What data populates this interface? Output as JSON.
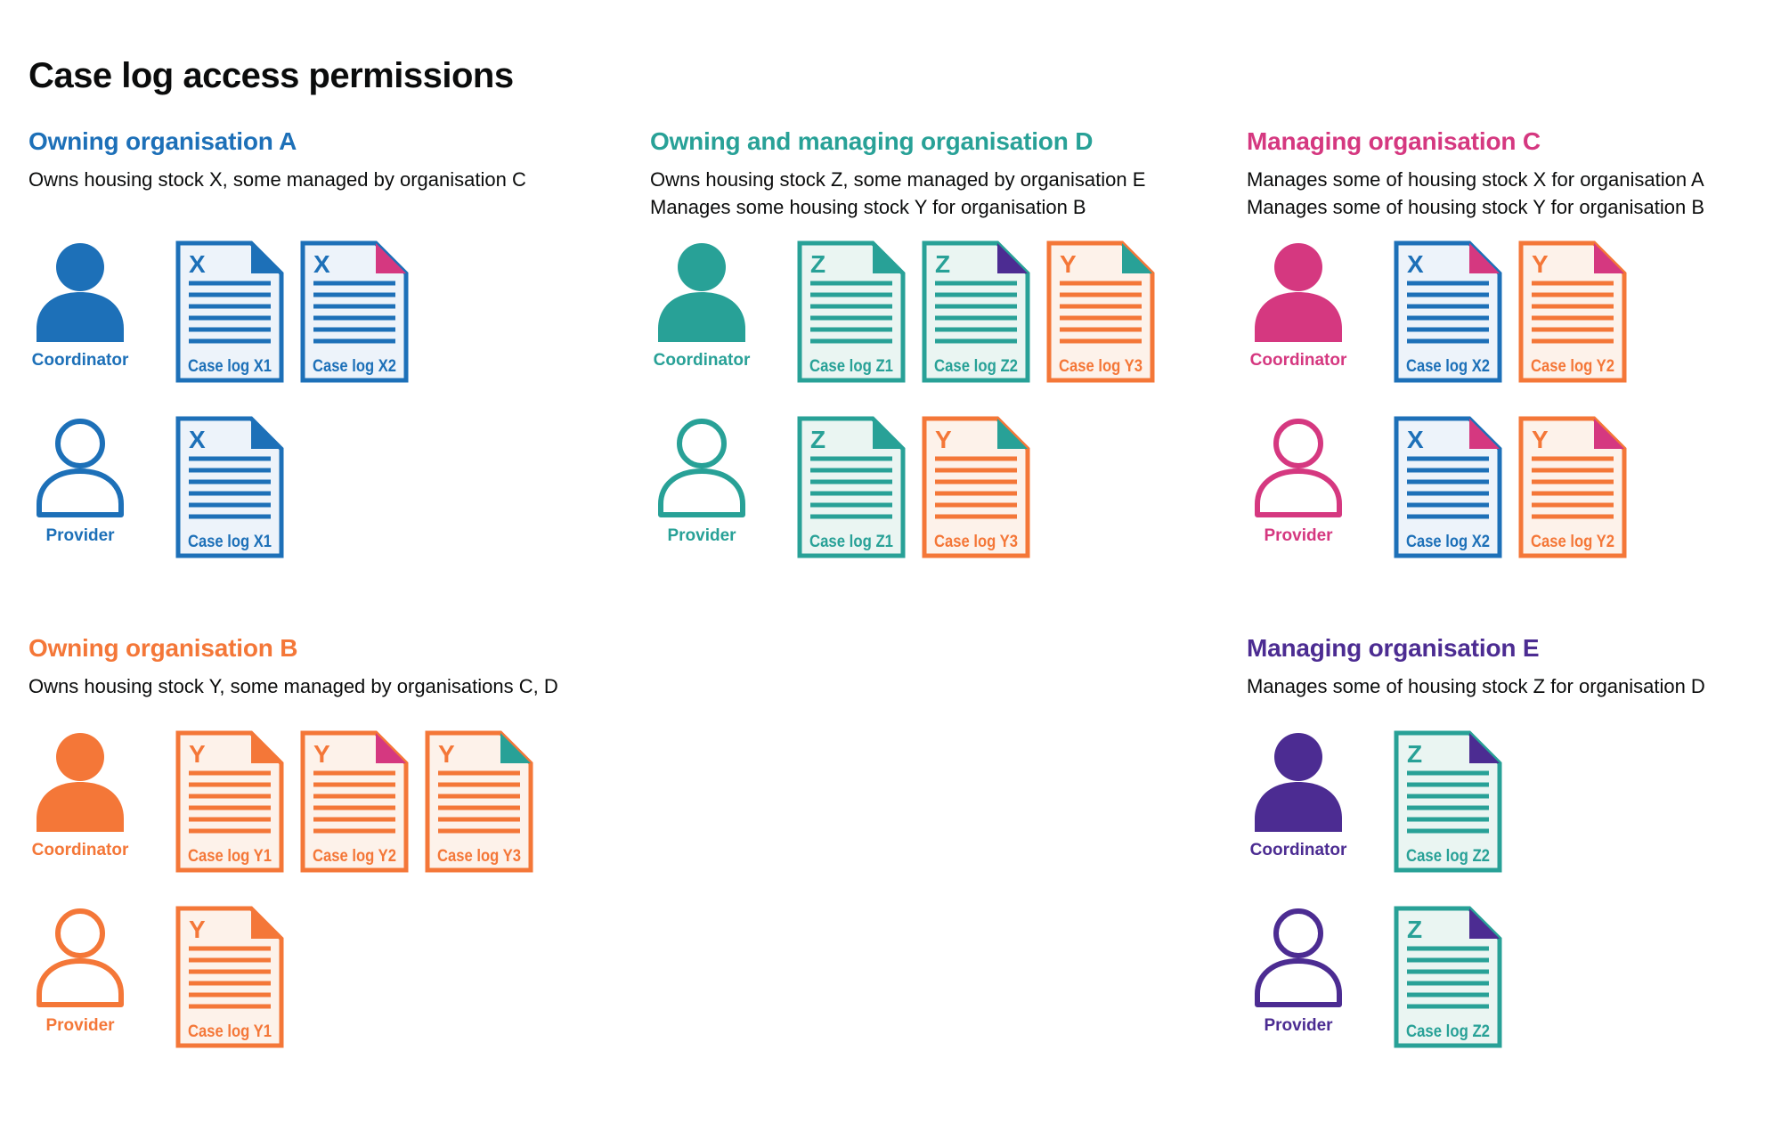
{
  "title": "Case log access permissions",
  "palette": {
    "text": "#0b0c0c",
    "background": "#ffffff",
    "blue": {
      "main": "#1d70b8",
      "bg": "#edf3fa"
    },
    "teal": {
      "main": "#28a197",
      "bg": "#eaf5f2"
    },
    "orange": {
      "main": "#f47738",
      "bg": "#fdf2ea"
    },
    "pink": {
      "main": "#d53880",
      "bg": "#fbecf3"
    },
    "purple": {
      "main": "#4c2c92",
      "bg": "#ece8f4"
    }
  },
  "organisations": [
    {
      "id": "A",
      "name": "Owning organisation A",
      "color": "blue",
      "description": [
        "Owns housing stock X, some managed by organisation C"
      ],
      "column": 0,
      "row": 0,
      "roles": [
        {
          "label": "Coordinator",
          "filled": true,
          "docs": [
            {
              "letter": "X",
              "label": "Case log X1",
              "doc_color": "blue",
              "fold_color": "blue"
            },
            {
              "letter": "X",
              "label": "Case log X2",
              "doc_color": "blue",
              "fold_color": "pink"
            }
          ]
        },
        {
          "label": "Provider",
          "filled": false,
          "docs": [
            {
              "letter": "X",
              "label": "Case log X1",
              "doc_color": "blue",
              "fold_color": "blue"
            }
          ]
        }
      ]
    },
    {
      "id": "D",
      "name": "Owning and managing organisation D",
      "color": "teal",
      "description": [
        "Owns housing stock Z, some managed by organisation E",
        "Manages some housing stock Y for organisation B"
      ],
      "column": 1,
      "row": 0,
      "roles": [
        {
          "label": "Coordinator",
          "filled": true,
          "docs": [
            {
              "letter": "Z",
              "label": "Case log Z1",
              "doc_color": "teal",
              "fold_color": "teal"
            },
            {
              "letter": "Z",
              "label": "Case log Z2",
              "doc_color": "teal",
              "fold_color": "purple"
            },
            {
              "letter": "Y",
              "label": "Case log Y3",
              "doc_color": "orange",
              "fold_color": "teal"
            }
          ]
        },
        {
          "label": "Provider",
          "filled": false,
          "docs": [
            {
              "letter": "Z",
              "label": "Case log Z1",
              "doc_color": "teal",
              "fold_color": "teal"
            },
            {
              "letter": "Y",
              "label": "Case log Y3",
              "doc_color": "orange",
              "fold_color": "teal"
            }
          ]
        }
      ]
    },
    {
      "id": "C",
      "name": "Managing organisation C",
      "color": "pink",
      "description": [
        "Manages some of housing stock X for organisation A",
        "Manages some of housing stock Y for organisation B"
      ],
      "column": 2,
      "row": 0,
      "roles": [
        {
          "label": "Coordinator",
          "filled": true,
          "docs": [
            {
              "letter": "X",
              "label": "Case log X2",
              "doc_color": "blue",
              "fold_color": "pink"
            },
            {
              "letter": "Y",
              "label": "Case log Y2",
              "doc_color": "orange",
              "fold_color": "pink"
            }
          ]
        },
        {
          "label": "Provider",
          "filled": false,
          "docs": [
            {
              "letter": "X",
              "label": "Case log X2",
              "doc_color": "blue",
              "fold_color": "pink"
            },
            {
              "letter": "Y",
              "label": "Case log Y2",
              "doc_color": "orange",
              "fold_color": "pink"
            }
          ]
        }
      ]
    },
    {
      "id": "B",
      "name": "Owning organisation B",
      "color": "orange",
      "description": [
        "Owns housing stock Y, some managed by organisations C, D"
      ],
      "column": 0,
      "row": 1,
      "roles": [
        {
          "label": "Coordinator",
          "filled": true,
          "docs": [
            {
              "letter": "Y",
              "label": "Case log Y1",
              "doc_color": "orange",
              "fold_color": "orange"
            },
            {
              "letter": "Y",
              "label": "Case log Y2",
              "doc_color": "orange",
              "fold_color": "pink"
            },
            {
              "letter": "Y",
              "label": "Case log Y3",
              "doc_color": "orange",
              "fold_color": "teal"
            }
          ]
        },
        {
          "label": "Provider",
          "filled": false,
          "docs": [
            {
              "letter": "Y",
              "label": "Case log Y1",
              "doc_color": "orange",
              "fold_color": "orange"
            }
          ]
        }
      ]
    },
    {
      "id": "E",
      "name": "Managing organisation E",
      "color": "purple",
      "description": [
        "Manages some of housing stock Z for organisation D"
      ],
      "column": 2,
      "row": 1,
      "roles": [
        {
          "label": "Coordinator",
          "filled": true,
          "docs": [
            {
              "letter": "Z",
              "label": "Case log Z2",
              "doc_color": "teal",
              "fold_color": "purple"
            }
          ]
        },
        {
          "label": "Provider",
          "filled": false,
          "docs": [
            {
              "letter": "Z",
              "label": "Case log Z2",
              "doc_color": "teal",
              "fold_color": "purple"
            }
          ]
        }
      ]
    }
  ]
}
